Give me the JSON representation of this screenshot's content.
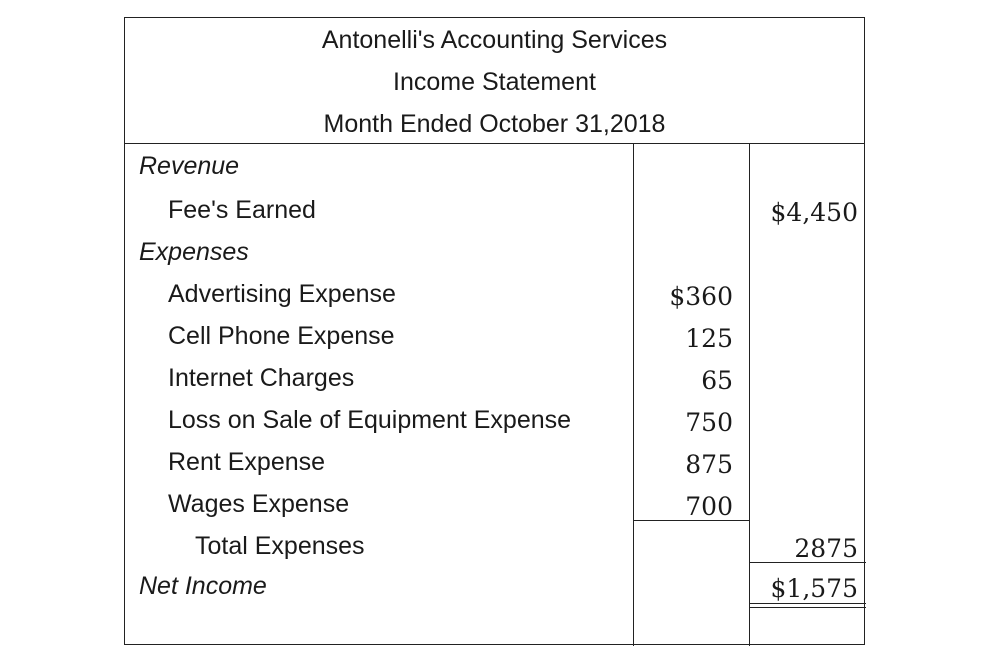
{
  "header": {
    "company": "Antonelli's Accounting Services",
    "statement": "Income Statement",
    "period": "Month Ended October 31,2018"
  },
  "revenue": {
    "section_label": "Revenue",
    "items": [
      {
        "label": "Fee's Earned",
        "amount": "$4,450"
      }
    ]
  },
  "expenses": {
    "section_label": "Expenses",
    "items": [
      {
        "label": "Advertising Expense",
        "amount": "$360"
      },
      {
        "label": "Cell Phone Expense",
        "amount": "125"
      },
      {
        "label": "Internet Charges",
        "amount": "65"
      },
      {
        "label": "Loss on Sale of Equipment Expense",
        "amount": "750"
      },
      {
        "label": "Rent Expense",
        "amount": "875"
      },
      {
        "label": "Wages Expense",
        "amount": "700"
      }
    ],
    "total_label": "Total Expenses",
    "total_amount": "2875"
  },
  "net_income": {
    "label": "Net Income",
    "amount": "$1,575"
  }
}
